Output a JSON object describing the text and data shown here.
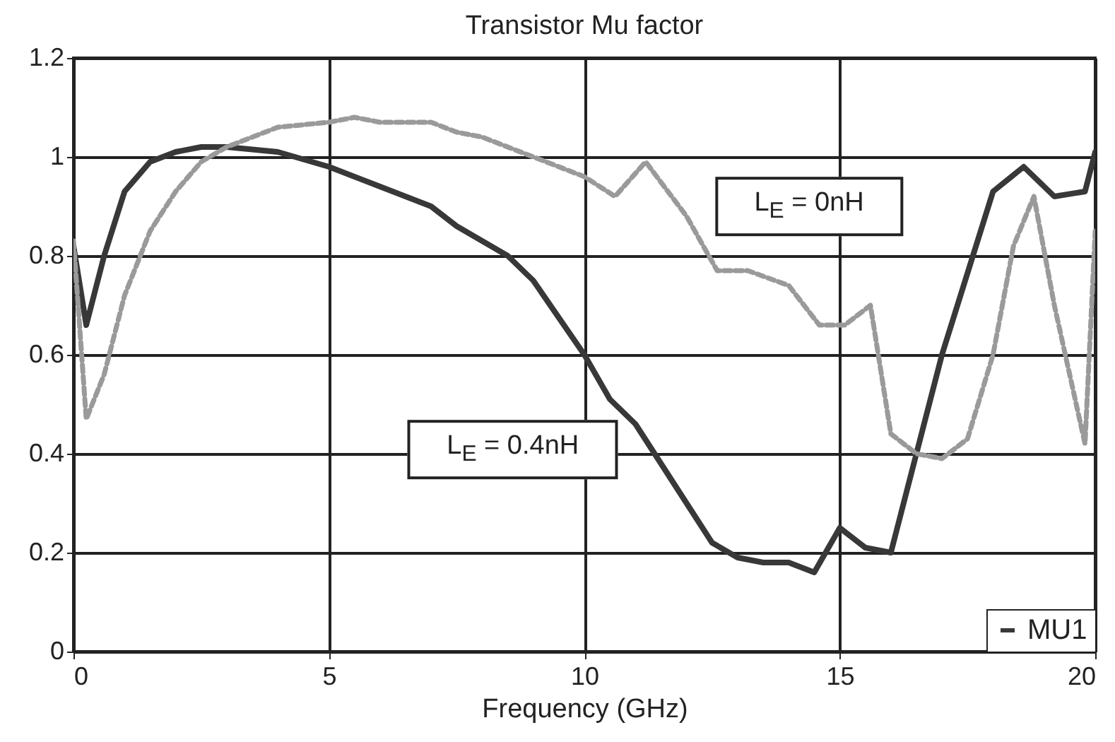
{
  "chart_data": {
    "type": "line",
    "title": "Transistor Mu factor",
    "xlabel": "Frequency (GHz)",
    "xlim": [
      0,
      20
    ],
    "xticks": [
      0,
      5,
      10,
      15,
      20
    ],
    "ylim": [
      0,
      1.2
    ],
    "yticks": [
      0,
      0.2,
      0.4,
      0.6,
      0.8,
      1,
      1.2
    ],
    "grid": true,
    "legend": "bottom right",
    "marker": "none",
    "series": [
      {
        "name": "MU1",
        "color": "#383838",
        "line_style": "solid",
        "x": [
          0,
          0.25,
          0.6,
          1,
          1.5,
          2,
          2.5,
          3,
          4,
          5,
          6,
          7,
          7.5,
          8.5,
          9,
          10,
          10.5,
          11,
          11.5,
          12,
          12.5,
          13,
          13.5,
          14,
          14.5,
          15,
          15.5,
          16,
          17,
          18,
          18.6,
          19.2,
          19.8,
          20
        ],
        "values": [
          0.82,
          0.66,
          0.8,
          0.93,
          0.99,
          1.01,
          1.02,
          1.02,
          1.01,
          0.98,
          0.94,
          0.9,
          0.86,
          0.8,
          0.75,
          0.6,
          0.51,
          0.46,
          0.38,
          0.3,
          0.22,
          0.19,
          0.18,
          0.18,
          0.16,
          0.25,
          0.21,
          0.2,
          0.6,
          0.93,
          0.98,
          0.92,
          0.93,
          1.01
        ]
      },
      {
        "color": "#9a9a9a",
        "line_style": "dashed",
        "x": [
          0,
          0.25,
          0.6,
          1,
          1.5,
          2,
          2.5,
          3,
          3.5,
          4,
          5,
          5.5,
          6,
          7,
          7.5,
          8,
          9,
          10,
          10.6,
          11.2,
          12,
          12.6,
          13.2,
          14,
          14.6,
          15.1,
          15.6,
          16,
          16.5,
          17,
          17.5,
          18,
          18.4,
          18.8,
          19.2,
          19.8,
          20
        ],
        "values": [
          0.83,
          0.47,
          0.56,
          0.72,
          0.85,
          0.93,
          0.99,
          1.02,
          1.04,
          1.06,
          1.07,
          1.08,
          1.07,
          1.07,
          1.05,
          1.04,
          1,
          0.96,
          0.92,
          0.99,
          0.88,
          0.77,
          0.77,
          0.74,
          0.66,
          0.66,
          0.7,
          0.44,
          0.4,
          0.39,
          0.43,
          0.6,
          0.82,
          0.92,
          0.7,
          0.42,
          0.85
        ]
      }
    ],
    "annotations": [
      "L$_{E}$ = 0nH",
      "L$_{E}$ = 0.4nH"
    ]
  }
}
